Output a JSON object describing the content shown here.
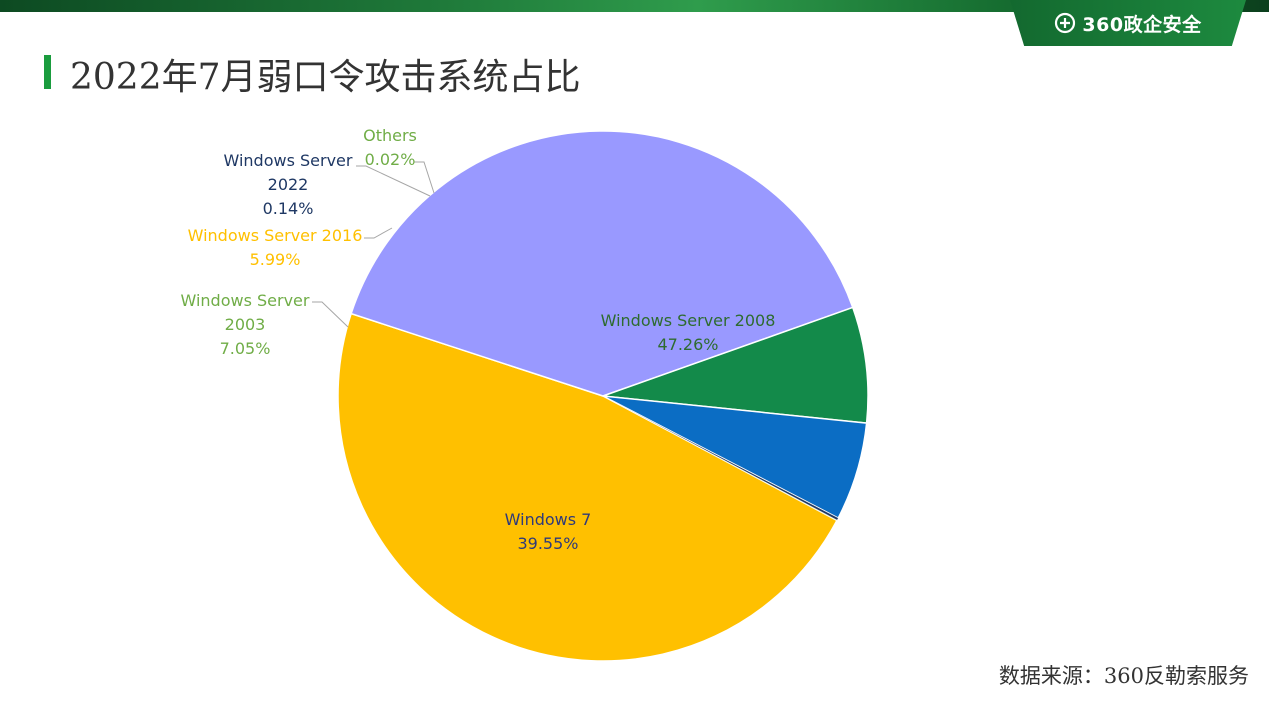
{
  "header": {
    "brand_text": "360政企安全",
    "brand_logo_icon": "plus-circle-icon"
  },
  "title": "2022年7月弱口令攻击系统占比",
  "source": "数据来源：360反勒索服务",
  "chart_data": {
    "type": "pie",
    "title": "2022年7月弱口令攻击系统占比",
    "legend": "none",
    "label_style": "name and percent beside each slice",
    "slices": [
      {
        "name": "Windows Server 2008",
        "value": 47.26,
        "label": "47.26%",
        "color": "#FFC000",
        "label_color": "#2E6B2F"
      },
      {
        "name": "Windows 7",
        "value": 39.55,
        "label": "39.55%",
        "color": "#9999FF",
        "label_color": "#2F3A7A"
      },
      {
        "name": "Windows Server 2003",
        "value": 7.05,
        "label": "7.05%",
        "color": "#138A4A",
        "label_color": "#70AD47"
      },
      {
        "name": "Windows Server 2016",
        "value": 5.99,
        "label": "5.99%",
        "color": "#0B6DC4",
        "label_color": "#FFC000"
      },
      {
        "name": "Windows Server 2022",
        "value": 0.14,
        "label": "0.14%",
        "color": "#1F3864",
        "label_color": "#1F3864"
      },
      {
        "name": "Others",
        "value": 0.02,
        "label": "0.02%",
        "color": "#70AD47",
        "label_color": "#70AD47"
      }
    ]
  }
}
